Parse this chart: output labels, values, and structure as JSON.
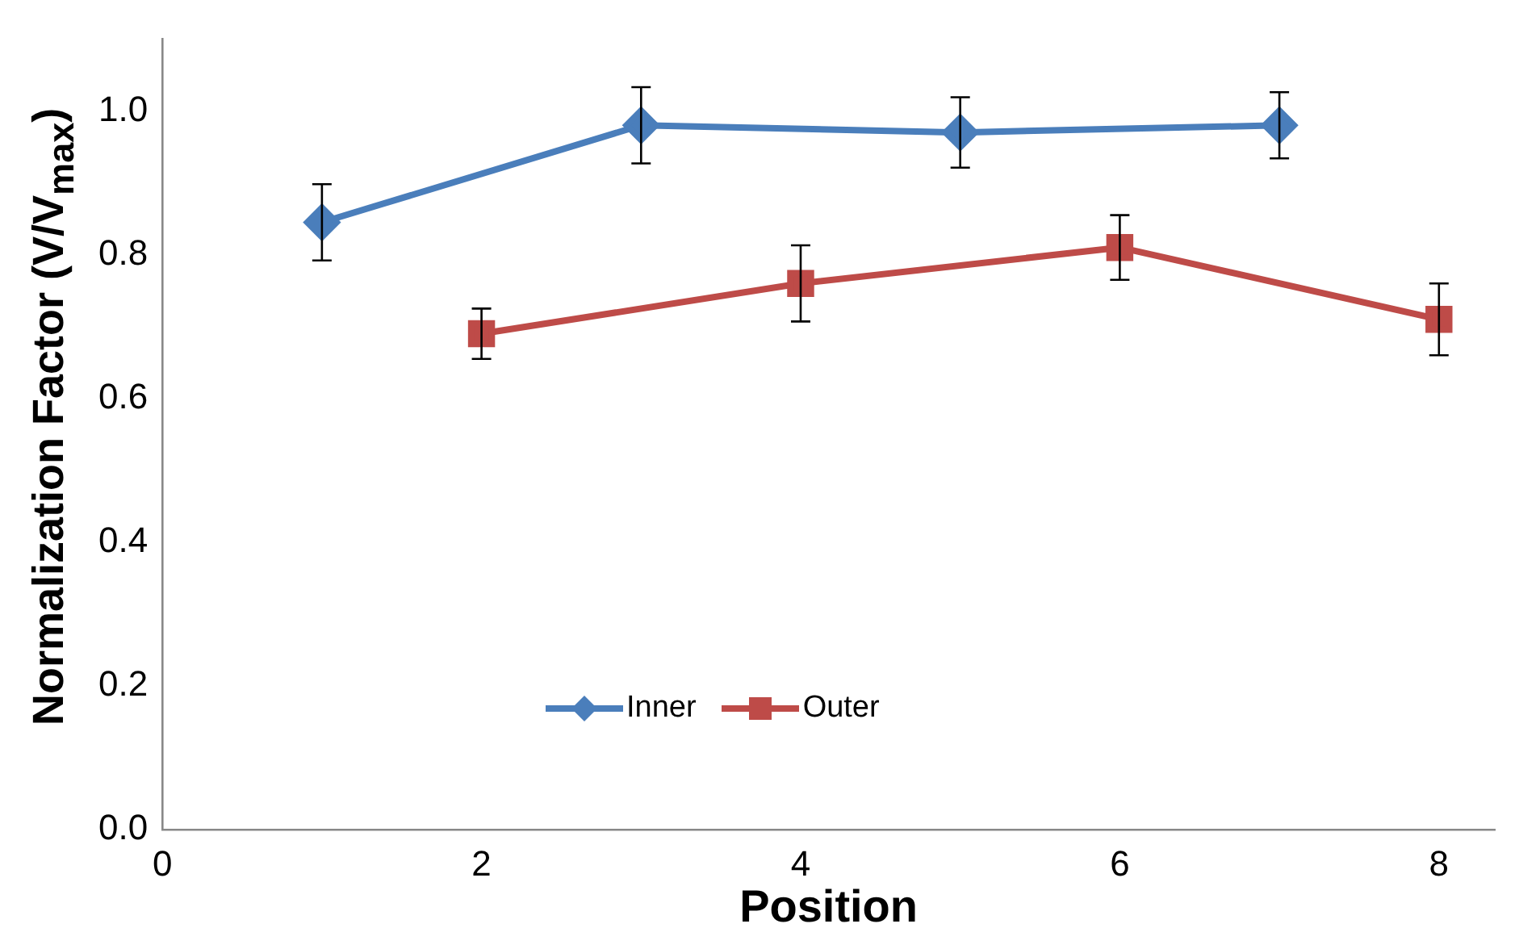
{
  "chart_data": {
    "type": "line",
    "xlabel": "Position",
    "ylabel": "Normalization Factor (V/V$_{max}$)",
    "xlim": [
      0,
      8.35
    ],
    "xticks": [
      0,
      2,
      4,
      6,
      8
    ],
    "ylim": [
      0,
      1.1
    ],
    "yticks": [
      {
        "value": 0,
        "label": "0.0"
      },
      {
        "value": 0.2,
        "label": "0.2"
      },
      {
        "value": 0.4,
        "label": "0.4"
      },
      {
        "value": 0.6,
        "label": "0.6"
      },
      {
        "value": 0.8,
        "label": "0.8"
      },
      {
        "value": 1,
        "label": "1.0"
      }
    ],
    "grid": false,
    "legend": "bottom",
    "series": [
      {
        "name": "Inner",
        "color": "#4a7ebb",
        "marker": "diamond",
        "x": [
          1,
          3,
          5,
          7
        ],
        "values": [
          0.845,
          0.98,
          0.97,
          0.98
        ],
        "errors": [
          0.053,
          0.053,
          0.049,
          0.046
        ]
      },
      {
        "name": "Outer",
        "color": "#be4b48",
        "marker": "square",
        "x": [
          2,
          4,
          6,
          8
        ],
        "values": [
          0.69,
          0.76,
          0.81,
          0.71
        ],
        "errors": [
          0.035,
          0.053,
          0.045,
          0.05
        ]
      }
    ]
  }
}
